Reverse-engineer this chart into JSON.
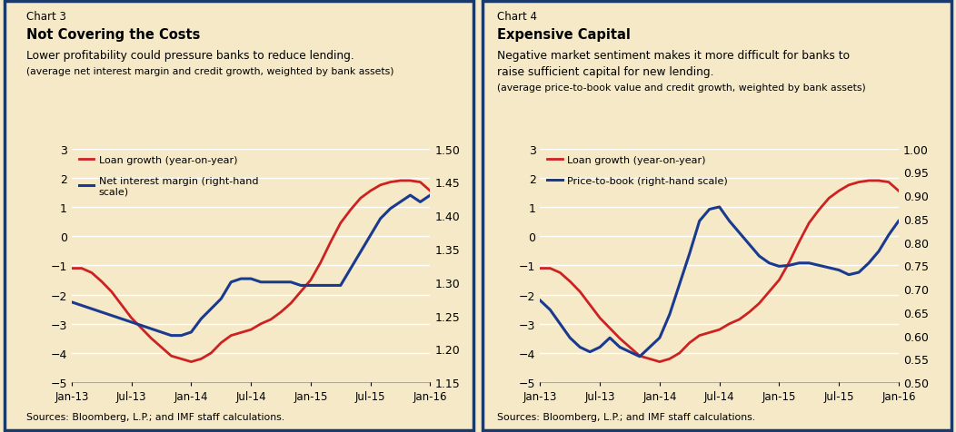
{
  "background_color": "#f5e9c8",
  "border_color": "#1a3a6b",
  "chart3": {
    "chart_label": "Chart 3",
    "title": "Not Covering the Costs",
    "subtitle": "Lower profitability could pressure banks to reduce lending.",
    "sub2": "(average net interest margin and credit growth, weighted by bank assets)",
    "loan_growth_label": "Loan growth (year-on-year)",
    "nim_label": "Net interest margin (right-hand\nscale)",
    "loan_color": "#cc2222",
    "nim_color": "#1a3a8f",
    "ylim_left": [
      -5.0,
      3.0
    ],
    "ylim_right": [
      1.15,
      1.5
    ],
    "yticks_left": [
      -5.0,
      -4.0,
      -3.0,
      -2.0,
      -1.0,
      0.0,
      1.0,
      2.0,
      3.0
    ],
    "yticks_right": [
      1.15,
      1.2,
      1.25,
      1.3,
      1.35,
      1.4,
      1.45,
      1.5
    ],
    "xtick_labels": [
      "Jan-13",
      "Jul-13",
      "Jan-14",
      "Jul-14",
      "Jan-15",
      "Jul-15",
      "Jan-16"
    ],
    "source": "Sources: Bloomberg, L.P.; and IMF staff calculations.",
    "loan_y": [
      -1.1,
      -1.1,
      -1.25,
      -1.55,
      -1.9,
      -2.35,
      -2.8,
      -3.15,
      -3.5,
      -3.8,
      -4.1,
      -4.2,
      -4.3,
      -4.2,
      -4.0,
      -3.65,
      -3.4,
      -3.3,
      -3.2,
      -3.0,
      -2.85,
      -2.6,
      -2.3,
      -1.9,
      -1.5,
      -0.9,
      -0.2,
      0.45,
      0.9,
      1.3,
      1.55,
      1.75,
      1.85,
      1.9,
      1.9,
      1.85,
      1.55
    ],
    "nim_y": [
      1.27,
      1.265,
      1.26,
      1.255,
      1.25,
      1.245,
      1.24,
      1.235,
      1.23,
      1.225,
      1.22,
      1.22,
      1.225,
      1.245,
      1.26,
      1.275,
      1.3,
      1.305,
      1.305,
      1.3,
      1.3,
      1.3,
      1.3,
      1.295,
      1.295,
      1.295,
      1.295,
      1.295,
      1.32,
      1.345,
      1.37,
      1.395,
      1.41,
      1.42,
      1.43,
      1.42,
      1.43
    ]
  },
  "chart4": {
    "chart_label": "Chart 4",
    "title": "Expensive Capital",
    "subtitle1": "Negative market sentiment makes it more difficult for banks to",
    "subtitle2": "raise sufficient capital for new lending.",
    "sub2": "(average price-to-book value and credit growth, weighted by bank assets)",
    "loan_growth_label": "Loan growth (year-on-year)",
    "ptb_label": "Price-to-book (right-hand scale)",
    "loan_color": "#cc2222",
    "ptb_color": "#1a3a8f",
    "ylim_left": [
      -5.0,
      3.0
    ],
    "ylim_right": [
      0.5,
      1.0
    ],
    "yticks_left": [
      -5.0,
      -4.0,
      -3.0,
      -2.0,
      -1.0,
      0.0,
      1.0,
      2.0,
      3.0
    ],
    "yticks_right": [
      0.5,
      0.55,
      0.6,
      0.65,
      0.7,
      0.75,
      0.8,
      0.85,
      0.9,
      0.95,
      1.0
    ],
    "xtick_labels": [
      "Jan-13",
      "Jul-13",
      "Jan-14",
      "Jul-14",
      "Jan-15",
      "Jul-15",
      "Jan-16"
    ],
    "source": "Sources: Bloomberg, L.P.; and IMF staff calculations.",
    "loan_y": [
      -1.1,
      -1.1,
      -1.25,
      -1.55,
      -1.9,
      -2.35,
      -2.8,
      -3.15,
      -3.5,
      -3.8,
      -4.1,
      -4.2,
      -4.3,
      -4.2,
      -4.0,
      -3.65,
      -3.4,
      -3.3,
      -3.2,
      -3.0,
      -2.85,
      -2.6,
      -2.3,
      -1.9,
      -1.5,
      -0.9,
      -0.2,
      0.45,
      0.9,
      1.3,
      1.55,
      1.75,
      1.85,
      1.9,
      1.9,
      1.85,
      1.55
    ],
    "ptb_y": [
      0.675,
      0.655,
      0.625,
      0.595,
      0.575,
      0.565,
      0.575,
      0.595,
      0.575,
      0.565,
      0.555,
      0.575,
      0.595,
      0.645,
      0.71,
      0.775,
      0.845,
      0.87,
      0.875,
      0.845,
      0.82,
      0.795,
      0.77,
      0.755,
      0.748,
      0.75,
      0.755,
      0.755,
      0.75,
      0.745,
      0.74,
      0.73,
      0.735,
      0.755,
      0.78,
      0.815,
      0.845
    ]
  }
}
